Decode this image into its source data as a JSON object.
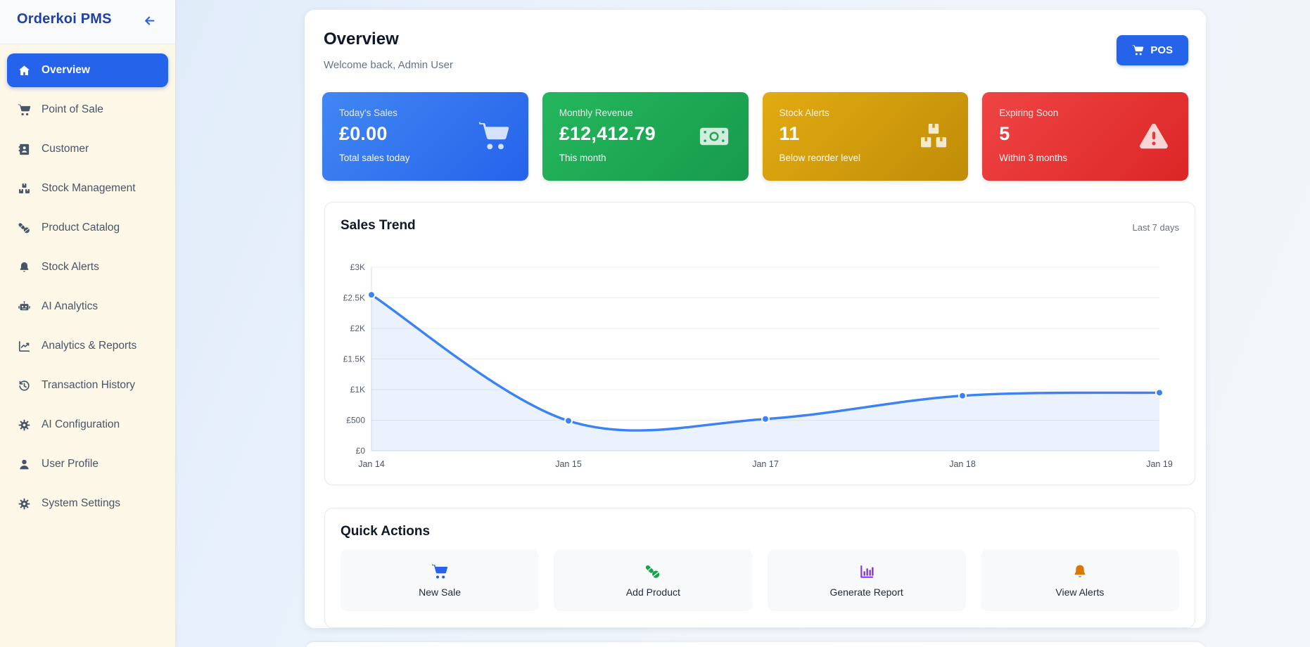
{
  "app": {
    "title": "Orderkoi PMS"
  },
  "sidebar": {
    "items": [
      {
        "label": "Overview",
        "icon": "home",
        "active": true
      },
      {
        "label": "Point of Sale",
        "icon": "cart",
        "active": false
      },
      {
        "label": "Customer",
        "icon": "address-book",
        "active": false
      },
      {
        "label": "Stock Management",
        "icon": "boxes",
        "active": false
      },
      {
        "label": "Product Catalog",
        "icon": "pills",
        "active": false
      },
      {
        "label": "Stock Alerts",
        "icon": "bell",
        "active": false
      },
      {
        "label": "AI Analytics",
        "icon": "robot",
        "active": false
      },
      {
        "label": "Analytics & Reports",
        "icon": "chart-line",
        "active": false
      },
      {
        "label": "Transaction History",
        "icon": "history",
        "active": false
      },
      {
        "label": "AI Configuration",
        "icon": "gear",
        "active": false
      },
      {
        "label": "User Profile",
        "icon": "user",
        "active": false
      },
      {
        "label": "System Settings",
        "icon": "gear",
        "active": false
      }
    ]
  },
  "header": {
    "title": "Overview",
    "subtitle": "Welcome back, Admin User",
    "pos_label": "POS"
  },
  "stats": [
    {
      "label": "Today's Sales",
      "value": "£0.00",
      "sub": "Total sales today",
      "icon": "cart",
      "color_from": "#4187f2",
      "color_to": "#2563eb",
      "icon_cut": "#2e6fe8"
    },
    {
      "label": "Monthly Revenue",
      "value": "£12,412.79",
      "sub": "This month",
      "icon": "money",
      "color_from": "#25b75d",
      "color_to": "#179b4b",
      "icon_cut": "#1ea754"
    },
    {
      "label": "Stock Alerts",
      "value": "11",
      "sub": "Below reorder level",
      "icon": "boxes",
      "color_from": "#e2ab12",
      "color_to": "#c08c07",
      "icon_cut": "#d09b0c"
    },
    {
      "label": "Expiring Soon",
      "value": "5",
      "sub": "Within 3 months",
      "icon": "warning",
      "color_from": "#ef4444",
      "color_to": "#dc2626",
      "icon_cut": "#e63a3a"
    }
  ],
  "chart_data": {
    "type": "line",
    "title": "Sales Trend",
    "period_label": "Last 7 days",
    "categories": [
      "Jan 14",
      "Jan 15",
      "Jan 17",
      "Jan 18",
      "Jan 19"
    ],
    "series": [
      {
        "name": "Sales",
        "values": [
          2550,
          490,
          520,
          900,
          950
        ]
      }
    ],
    "ylabel": "",
    "xlabel": "",
    "ylim": [
      0,
      3000
    ],
    "yticks": [
      {
        "value": 0,
        "label": "£0"
      },
      {
        "value": 500,
        "label": "£500"
      },
      {
        "value": 1000,
        "label": "£1K"
      },
      {
        "value": 1500,
        "label": "£1.5K"
      },
      {
        "value": 2000,
        "label": "£2K"
      },
      {
        "value": 2500,
        "label": "£2.5K"
      },
      {
        "value": 3000,
        "label": "£3K"
      }
    ],
    "grid": true,
    "smooth": true,
    "line_color": "#3b82f6",
    "fill_color": "rgba(59,130,246,0.10)",
    "point_color": "#3b82f6"
  },
  "quick_actions": {
    "title": "Quick Actions",
    "items": [
      {
        "label": "New Sale",
        "icon": "cart",
        "color": "#2563eb"
      },
      {
        "label": "Add Product",
        "icon": "pills",
        "color": "#16a34a"
      },
      {
        "label": "Generate Report",
        "icon": "chart-column",
        "color": "#9333ea"
      },
      {
        "label": "View Alerts",
        "icon": "bell",
        "color": "#d97706"
      }
    ]
  },
  "colors": {
    "accent": "#2563eb",
    "sidebar_bg": "#fdf7e7",
    "brand_text": "#1e40af"
  }
}
